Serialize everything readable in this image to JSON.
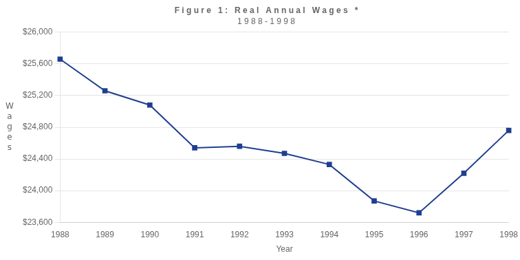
{
  "chart_data": {
    "type": "line",
    "title": "F i g u r e   1 :   R e a l   A n n u a l   W a g e s   *",
    "subtitle": "1 9 8 8 - 1 9 9 8",
    "x_label": "Year",
    "y_label": "W\na\ng\ne\ns",
    "categories": [
      "1988",
      "1989",
      "1990",
      "1991",
      "1992",
      "1993",
      "1994",
      "1995",
      "1996",
      "1997",
      "1998"
    ],
    "values": [
      25660,
      25260,
      25080,
      24540,
      24560,
      24470,
      24330,
      23870,
      23720,
      24220,
      24760
    ],
    "color": "#1F3F8F",
    "marker": "square",
    "ylim": [
      23600,
      26000
    ],
    "yticks": [
      {
        "value": 23600,
        "label": "$23,600"
      },
      {
        "value": 24000,
        "label": "$24,000"
      },
      {
        "value": 24400,
        "label": "$24,400"
      },
      {
        "value": 24800,
        "label": "$24,800"
      },
      {
        "value": 25200,
        "label": "$25,200"
      },
      {
        "value": 25600,
        "label": "$25,600"
      },
      {
        "value": 26000,
        "label": "$26,000"
      }
    ],
    "grid": true
  }
}
